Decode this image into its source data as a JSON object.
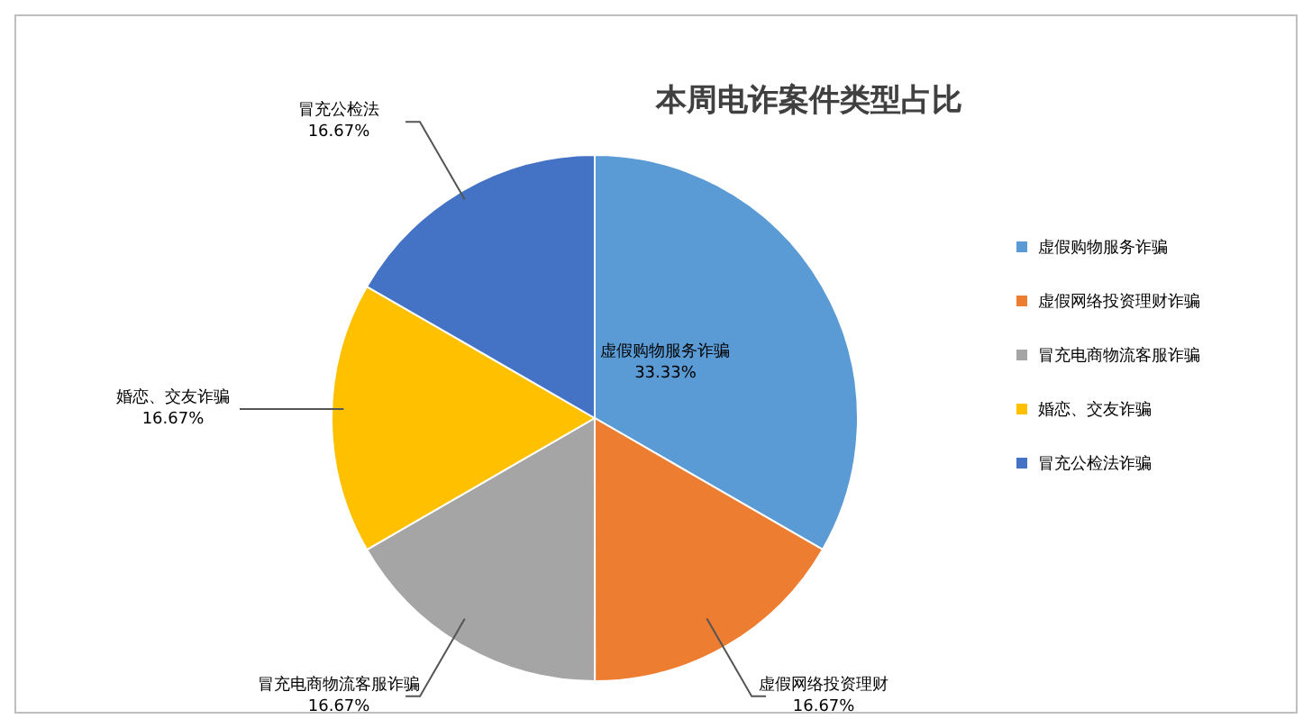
{
  "chart_data": {
    "type": "pie",
    "title": "本周电诈案件类型占比",
    "categories": [
      "虚假购物服务诈骗",
      "虚假网络投资理财诈骗",
      "冒充电商物流客服诈骗",
      "婚恋、交友诈骗",
      "冒充公检法诈骗"
    ],
    "values": [
      33.33,
      16.67,
      16.67,
      16.67,
      16.67
    ],
    "colors": [
      "#5b9bd5",
      "#ed7d31",
      "#a5a5a5",
      "#ffc000",
      "#4472c4"
    ],
    "value_labels": [
      "虚假购物服务诈骗\n33.33%",
      "虚假网络投资理财\n16.67%",
      "冒充电商物流客服诈骗\n16.67%",
      "婚恋、交友诈骗\n16.67%",
      "冒充公检法\n16.67%"
    ],
    "legend": "right"
  }
}
